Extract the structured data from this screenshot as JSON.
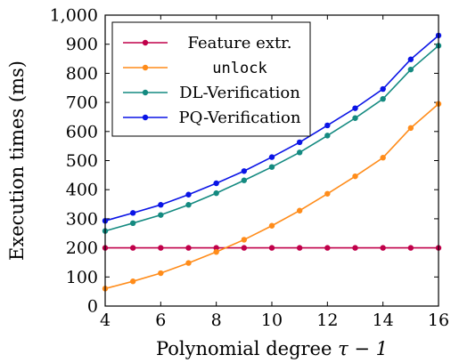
{
  "chart_data": {
    "type": "line",
    "title": "",
    "xlabel_prefix": "Polynomial degree ",
    "xlabel_math": "τ − 1",
    "ylabel": "Execution times (ms)",
    "x": [
      4,
      5,
      6,
      7,
      8,
      9,
      10,
      11,
      12,
      13,
      14,
      15,
      16
    ],
    "xlim": [
      4,
      16
    ],
    "ylim": [
      0,
      1000
    ],
    "x_ticks": [
      4,
      6,
      8,
      10,
      12,
      14,
      16
    ],
    "y_ticks": [
      0,
      100,
      200,
      300,
      400,
      500,
      600,
      700,
      800,
      900,
      1000
    ],
    "y_tick_labels": [
      "0",
      "100",
      "200",
      "300",
      "400",
      "500",
      "600",
      "700",
      "800",
      "900",
      "1,000"
    ],
    "grid": false,
    "legend_position": "top-left",
    "series": [
      {
        "name": "Feature extr.",
        "monospace": false,
        "color": "#c0004a",
        "values": [
          200,
          200,
          200,
          200,
          200,
          200,
          200,
          200,
          200,
          200,
          200,
          200,
          200
        ]
      },
      {
        "name": "unlock",
        "monospace": true,
        "color": "#ff8c1a",
        "values": [
          60,
          85,
          113,
          148,
          186,
          228,
          276,
          328,
          386,
          446,
          510,
          612,
          695
        ]
      },
      {
        "name": "DL-Verification",
        "monospace": false,
        "color": "#148a80",
        "values": [
          258,
          285,
          313,
          348,
          388,
          432,
          478,
          528,
          586,
          646,
          712,
          813,
          895
        ]
      },
      {
        "name": "PQ-Verification",
        "monospace": false,
        "color": "#0a14e6",
        "values": [
          293,
          320,
          348,
          383,
          422,
          464,
          512,
          563,
          621,
          680,
          746,
          848,
          930
        ]
      }
    ]
  }
}
